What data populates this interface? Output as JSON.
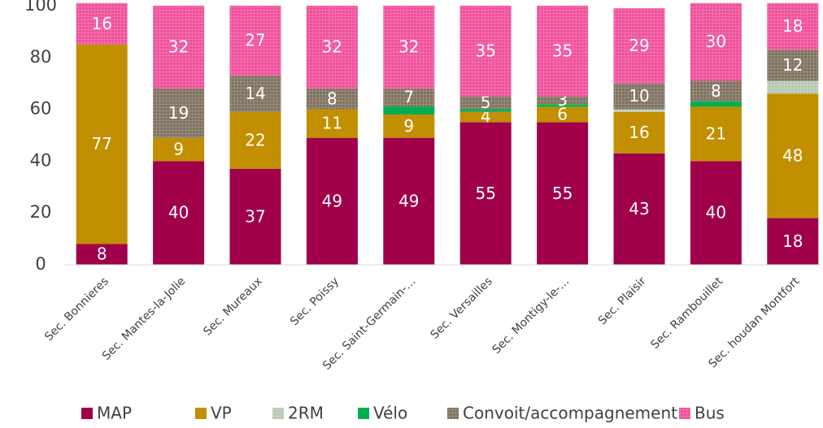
{
  "chart_data": {
    "type": "stacked_bar",
    "categories": [
      "Sec. Bonnieres",
      "Sec. Mantes-la-Jolie",
      "Sec. Mureaux",
      "Sec. Poissy",
      "Sec. Saint-Germain-…",
      "Sec. Versailles",
      "Sec. Montigy-le-…",
      "Sec. Plaisir",
      "Sec. Rambouillet",
      "Sec. houdan Montfort"
    ],
    "series": [
      {
        "name": "MAP",
        "color": "#a0004a",
        "pattern": false,
        "data_labels": true,
        "label_color": "#ffffff",
        "values": [
          8,
          40,
          37,
          49,
          49,
          55,
          55,
          43,
          40,
          18
        ]
      },
      {
        "name": "VP",
        "color": "#c18f00",
        "pattern": false,
        "data_labels": true,
        "label_color": "#ffffff",
        "values": [
          77,
          9,
          22,
          11,
          9,
          4,
          6,
          16,
          21,
          48
        ]
      },
      {
        "name": "2RM",
        "color": "#b7c8b0",
        "pattern": true,
        "data_labels": false,
        "label_color": "#404040",
        "values": [
          0,
          0,
          0,
          0,
          0,
          0,
          0,
          1,
          0,
          5
        ]
      },
      {
        "name": "Vélo",
        "color": "#00b050",
        "pattern": false,
        "data_labels": false,
        "label_color": "#404040",
        "values": [
          0,
          0,
          0,
          0,
          3,
          1,
          1,
          0,
          2,
          0
        ]
      },
      {
        "name": "Convoit/accompagnement",
        "color": "#7f7260",
        "pattern": true,
        "data_labels": true,
        "label_color": "#ffffff",
        "values": [
          0,
          19,
          14,
          8,
          7,
          5,
          3,
          10,
          8,
          12
        ]
      },
      {
        "name": "Bus",
        "color": "#f0509a",
        "pattern": true,
        "data_labels": true,
        "label_color": "#ffffff",
        "values": [
          16,
          32,
          27,
          32,
          32,
          35,
          35,
          29,
          30,
          18
        ]
      }
    ],
    "ylim": [
      0,
      100
    ],
    "yticks": [
      0,
      20,
      40,
      60,
      80,
      100
    ],
    "grid": false,
    "legend": "bottom"
  }
}
